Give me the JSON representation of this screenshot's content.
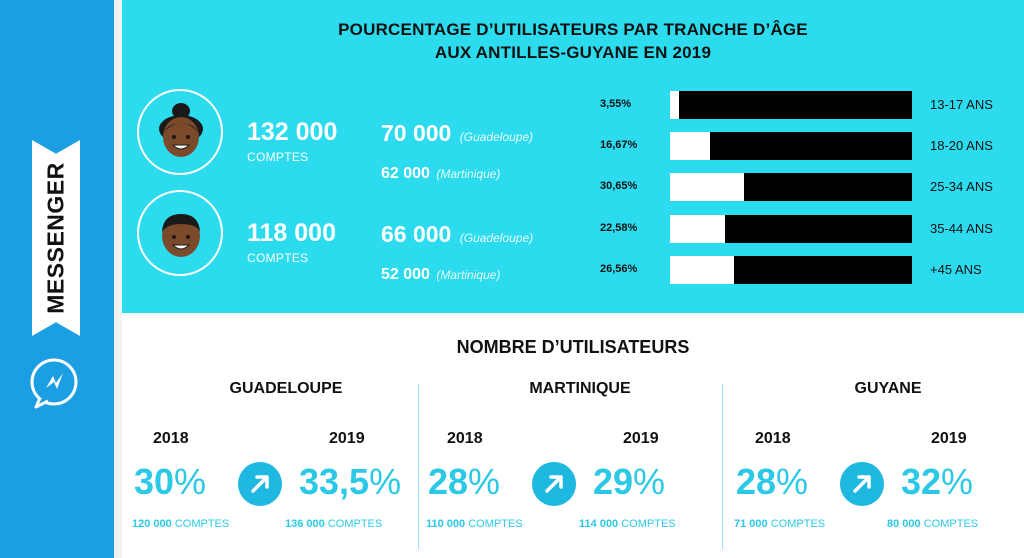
{
  "sidebar": {
    "brand": "MESSENGER",
    "icon": "messenger-icon"
  },
  "top": {
    "title_line1": "POURCENTAGE D’UTILISATEURS PAR TRANCHE D’ÂGE",
    "title_line2": "AUX ANTILLES-GUYANE EN 2019",
    "women": {
      "icon": "woman-avatar-icon",
      "total": "132 000",
      "total_label": "COMPTES",
      "guadeloupe_value": "70 000",
      "guadeloupe_label": "(Guadeloupe)",
      "martinique_value": "62 000",
      "martinique_label": "(Martinique)"
    },
    "men": {
      "icon": "man-avatar-icon",
      "total": "118 000",
      "total_label": "COMPTES",
      "guadeloupe_value": "66 000",
      "guadeloupe_label": "(Guadeloupe)",
      "martinique_value": "52 000",
      "martinique_label": "(Martinique)"
    },
    "ages": [
      {
        "pct": "3,55%",
        "value": 3.55,
        "label": "13-17 ANS"
      },
      {
        "pct": "16,67%",
        "value": 16.67,
        "label": "18-20 ANS"
      },
      {
        "pct": "30,65%",
        "value": 30.65,
        "label": "25-34 ANS"
      },
      {
        "pct": "22,58%",
        "value": 22.58,
        "label": "35-44 ANS"
      },
      {
        "pct": "26,56%",
        "value": 26.56,
        "label": "+45 ANS"
      }
    ]
  },
  "bottom": {
    "title": "NOMBRE D’UTILISATEURS",
    "regions": [
      {
        "name": "GUADELOUPE",
        "year_a": "2018",
        "year_b": "2019",
        "pct_a": "30",
        "pct_b": "33,5",
        "sym": "%",
        "accts_a_num": "120 000",
        "accts_b_num": "136 000",
        "accts_word": "COMPTES"
      },
      {
        "name": "MARTINIQUE",
        "year_a": "2018",
        "year_b": "2019",
        "pct_a": "28",
        "pct_b": "29",
        "sym": "%",
        "accts_a_num": "110 000",
        "accts_b_num": "114 000",
        "accts_word": "COMPTES"
      },
      {
        "name": "GUYANE",
        "year_a": "2018",
        "year_b": "2019",
        "pct_a": "28",
        "pct_b": "32",
        "sym": "%",
        "accts_a_num": "71 000",
        "accts_b_num": "80 000",
        "accts_word": "COMPTES"
      }
    ]
  },
  "colors": {
    "sidebar": "#1c9ee3",
    "panel": "#2cdcee",
    "accent": "#2cc9e6",
    "bar": "#000000"
  },
  "chart_data": {
    "type": "bar",
    "title": "POURCENTAGE D’UTILISATEURS PAR TRANCHE D’ÂGE AUX ANTILLES-GUYANE EN 2019",
    "categories": [
      "13-17 ANS",
      "18-20 ANS",
      "25-34 ANS",
      "35-44 ANS",
      "+45 ANS"
    ],
    "values": [
      3.55,
      16.67,
      30.65,
      22.58,
      26.56
    ],
    "orientation": "horizontal",
    "ylim": [
      0,
      100
    ]
  }
}
